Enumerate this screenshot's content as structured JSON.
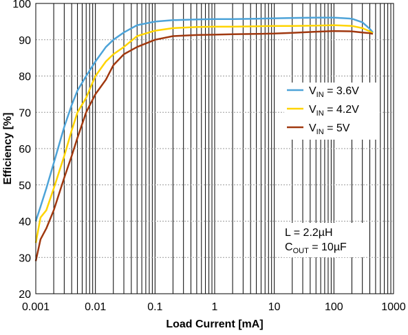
{
  "chart_data": {
    "type": "line",
    "xlabel": "Load Current [mA]",
    "ylabel": "Efficiency [%]",
    "xscale": "log",
    "xlim": [
      0.001,
      1000
    ],
    "ylim": [
      20,
      100
    ],
    "x_ticks": [
      "0.001",
      "0.01",
      "0.1",
      "1",
      "10",
      "100",
      "1000"
    ],
    "y_ticks": [
      "20",
      "30",
      "40",
      "50",
      "60",
      "70",
      "80",
      "90",
      "100"
    ],
    "grid": true,
    "legend_position": "right-middle",
    "series": [
      {
        "name_main": "V",
        "name_sub": "IN",
        "name_tail": " = 3.6V",
        "color": "#4da3d8",
        "x": [
          0.001,
          0.0012,
          0.0015,
          0.002,
          0.003,
          0.004,
          0.005,
          0.007,
          0.01,
          0.015,
          0.02,
          0.03,
          0.05,
          0.1,
          0.2,
          0.5,
          1,
          2,
          5,
          10,
          20,
          50,
          100,
          200,
          300,
          400,
          450
        ],
        "values": [
          40,
          44,
          49,
          56,
          66,
          72,
          76,
          80,
          84,
          88,
          90,
          92,
          94,
          95,
          95.4,
          95.6,
          95.7,
          95.7,
          95.8,
          95.9,
          96,
          96.1,
          96.1,
          95.8,
          94.8,
          93,
          92
        ]
      },
      {
        "name_main": "V",
        "name_sub": "IN",
        "name_tail": " = 4.2V",
        "color": "#ffd400",
        "x": [
          0.001,
          0.0012,
          0.0015,
          0.002,
          0.003,
          0.004,
          0.005,
          0.007,
          0.01,
          0.015,
          0.02,
          0.03,
          0.05,
          0.1,
          0.2,
          0.5,
          1,
          2,
          5,
          10,
          20,
          50,
          100,
          200,
          300,
          400,
          450
        ],
        "values": [
          34,
          41,
          43,
          49,
          58,
          65,
          70,
          74,
          80,
          84,
          86,
          88,
          91,
          92.5,
          93.2,
          93.5,
          93.6,
          93.6,
          93.7,
          93.8,
          93.8,
          93.9,
          94,
          93.8,
          93.2,
          92.3,
          91.8
        ]
      },
      {
        "name_main": "V",
        "name_sub": "IN",
        "name_tail": " = 5V",
        "color": "#a0380f",
        "x": [
          0.001,
          0.0012,
          0.0015,
          0.002,
          0.003,
          0.004,
          0.005,
          0.007,
          0.01,
          0.015,
          0.02,
          0.03,
          0.05,
          0.1,
          0.2,
          0.5,
          1,
          2,
          5,
          10,
          20,
          50,
          100,
          200,
          300,
          400,
          450
        ],
        "values": [
          29,
          35,
          38,
          43,
          52,
          58,
          63,
          70,
          75,
          79,
          83,
          86,
          88,
          90,
          91,
          91.3,
          91.4,
          91.5,
          91.6,
          91.7,
          91.9,
          92.2,
          92.4,
          92.3,
          92,
          91.8,
          91.6
        ]
      }
    ],
    "annotation": {
      "line1": "L = 2.2µH",
      "line2_main": "C",
      "line2_sub": "OUT",
      "line2_tail": " = 10µF"
    }
  }
}
